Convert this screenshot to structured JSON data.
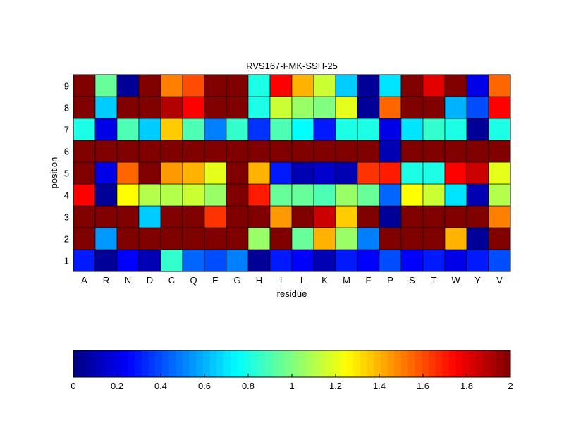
{
  "chart_data": {
    "type": "heatmap",
    "title": "RVS167-FMK-SSH-25",
    "xlabel": "residue",
    "ylabel": "position",
    "x_categories": [
      "A",
      "R",
      "N",
      "D",
      "C",
      "Q",
      "E",
      "G",
      "H",
      "I",
      "L",
      "K",
      "M",
      "F",
      "P",
      "S",
      "T",
      "W",
      "Y",
      "V"
    ],
    "y_categories": [
      "1",
      "2",
      "3",
      "4",
      "5",
      "6",
      "7",
      "8",
      "9"
    ],
    "values": [
      [
        0.3,
        0.05,
        0.25,
        0.1,
        0.85,
        0.45,
        0.4,
        0.5,
        0.05,
        0.3,
        0.25,
        0.1,
        0.3,
        0.25,
        0.4,
        0.25,
        0.3,
        0.2,
        0.3,
        0.4
      ],
      [
        2.0,
        0.55,
        2.0,
        2.0,
        2.0,
        2.0,
        2.0,
        2.0,
        1.05,
        2.0,
        0.95,
        1.4,
        1.05,
        0.5,
        2.0,
        2.0,
        2.0,
        1.4,
        0.05,
        2.0
      ],
      [
        2.0,
        2.0,
        2.0,
        0.65,
        2.0,
        2.0,
        1.65,
        2.0,
        2.0,
        1.45,
        2.0,
        1.85,
        1.35,
        2.0,
        0.05,
        2.0,
        2.0,
        2.0,
        2.0,
        1.5
      ],
      [
        1.75,
        0.05,
        1.25,
        1.1,
        1.1,
        1.15,
        1.05,
        2.0,
        1.7,
        0.95,
        0.95,
        0.9,
        1.05,
        0.95,
        0.45,
        1.25,
        1.15,
        0.7,
        0.1,
        1.1
      ],
      [
        2.0,
        0.2,
        1.55,
        2.0,
        1.45,
        1.4,
        1.2,
        2.0,
        1.4,
        0.3,
        0.1,
        0.15,
        0.1,
        1.65,
        1.7,
        0.8,
        0.8,
        1.75,
        1.85,
        1.2
      ],
      [
        2.0,
        2.0,
        2.0,
        2.0,
        2.0,
        2.0,
        2.0,
        2.0,
        2.0,
        2.0,
        2.0,
        2.0,
        2.0,
        2.0,
        0.1,
        2.0,
        2.0,
        2.0,
        2.0,
        2.0
      ],
      [
        0.8,
        0.2,
        0.9,
        0.65,
        1.35,
        0.9,
        0.5,
        0.85,
        0.35,
        0.9,
        0.75,
        0.3,
        0.8,
        0.8,
        0.2,
        0.7,
        0.85,
        0.8,
        0.05,
        0.8
      ],
      [
        2.0,
        0.65,
        2.0,
        2.0,
        1.9,
        1.75,
        2.0,
        2.0,
        0.8,
        1.15,
        1.05,
        1.0,
        1.2,
        0.05,
        1.55,
        2.0,
        2.0,
        0.6,
        0.4,
        1.75
      ],
      [
        2.0,
        0.95,
        0.05,
        2.0,
        1.5,
        1.6,
        2.0,
        2.0,
        0.8,
        1.75,
        1.4,
        1.15,
        0.65,
        0.05,
        0.7,
        2.0,
        1.8,
        2.0,
        0.2,
        1.55
      ]
    ],
    "colorbar": {
      "colormap": "jet",
      "range": [
        0,
        2
      ],
      "ticks": [
        "0",
        "0.2",
        "0.4",
        "0.6",
        "0.8",
        "1",
        "1.2",
        "1.4",
        "1.6",
        "1.8",
        "2"
      ]
    },
    "grid": false
  }
}
